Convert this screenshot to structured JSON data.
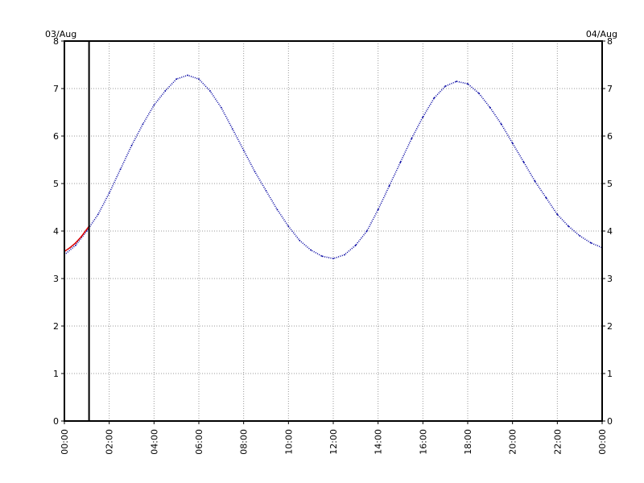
{
  "chart_data": {
    "type": "line",
    "title": "",
    "xlabel": "",
    "ylabel": "",
    "date_left": "03/Aug",
    "date_right": "04/Aug",
    "x_ticks": [
      "00:00",
      "02:00",
      "04:00",
      "06:00",
      "08:00",
      "10:00",
      "12:00",
      "14:00",
      "16:00",
      "18:00",
      "20:00",
      "22:00",
      "00:00"
    ],
    "y_ticks": [
      "0",
      "1",
      "2",
      "3",
      "4",
      "5",
      "6",
      "7",
      "8"
    ],
    "xlim_hours": [
      0,
      24
    ],
    "ylim": [
      0,
      8
    ],
    "grid": true,
    "current_time_hours": 1.1,
    "colors": {
      "predicted": "#0000a0",
      "observed": "#dd0000",
      "grid": "#999999",
      "axis": "#000000"
    },
    "series": [
      {
        "style": "dotted",
        "color": "#0000a0",
        "x": [
          0,
          0.5,
          1,
          1.5,
          2,
          2.5,
          3,
          3.5,
          4,
          4.5,
          5,
          5.5,
          6,
          6.5,
          7,
          7.5,
          8,
          8.5,
          9,
          9.5,
          10,
          10.5,
          11,
          11.5,
          12,
          12.5,
          13,
          13.5,
          14,
          14.5,
          15,
          15.5,
          16,
          16.5,
          17,
          17.5,
          18,
          18.5,
          19,
          19.5,
          20,
          20.5,
          21,
          21.5,
          22,
          22.5,
          23,
          23.5,
          24
        ],
        "y": [
          3.5,
          3.7,
          4.0,
          4.35,
          4.8,
          5.3,
          5.8,
          6.25,
          6.65,
          6.95,
          7.2,
          7.28,
          7.2,
          6.95,
          6.6,
          6.15,
          5.7,
          5.25,
          4.85,
          4.45,
          4.1,
          3.8,
          3.6,
          3.47,
          3.42,
          3.5,
          3.7,
          4.0,
          4.45,
          4.95,
          5.45,
          5.95,
          6.4,
          6.8,
          7.05,
          7.15,
          7.1,
          6.9,
          6.6,
          6.25,
          5.85,
          5.45,
          5.05,
          4.7,
          4.35,
          4.1,
          3.9,
          3.75,
          3.65
        ]
      },
      {
        "style": "solid",
        "color": "#dd0000",
        "x": [
          0,
          0.25,
          0.5,
          0.75,
          1.1
        ],
        "y": [
          3.57,
          3.65,
          3.75,
          3.88,
          4.1
        ]
      }
    ]
  }
}
